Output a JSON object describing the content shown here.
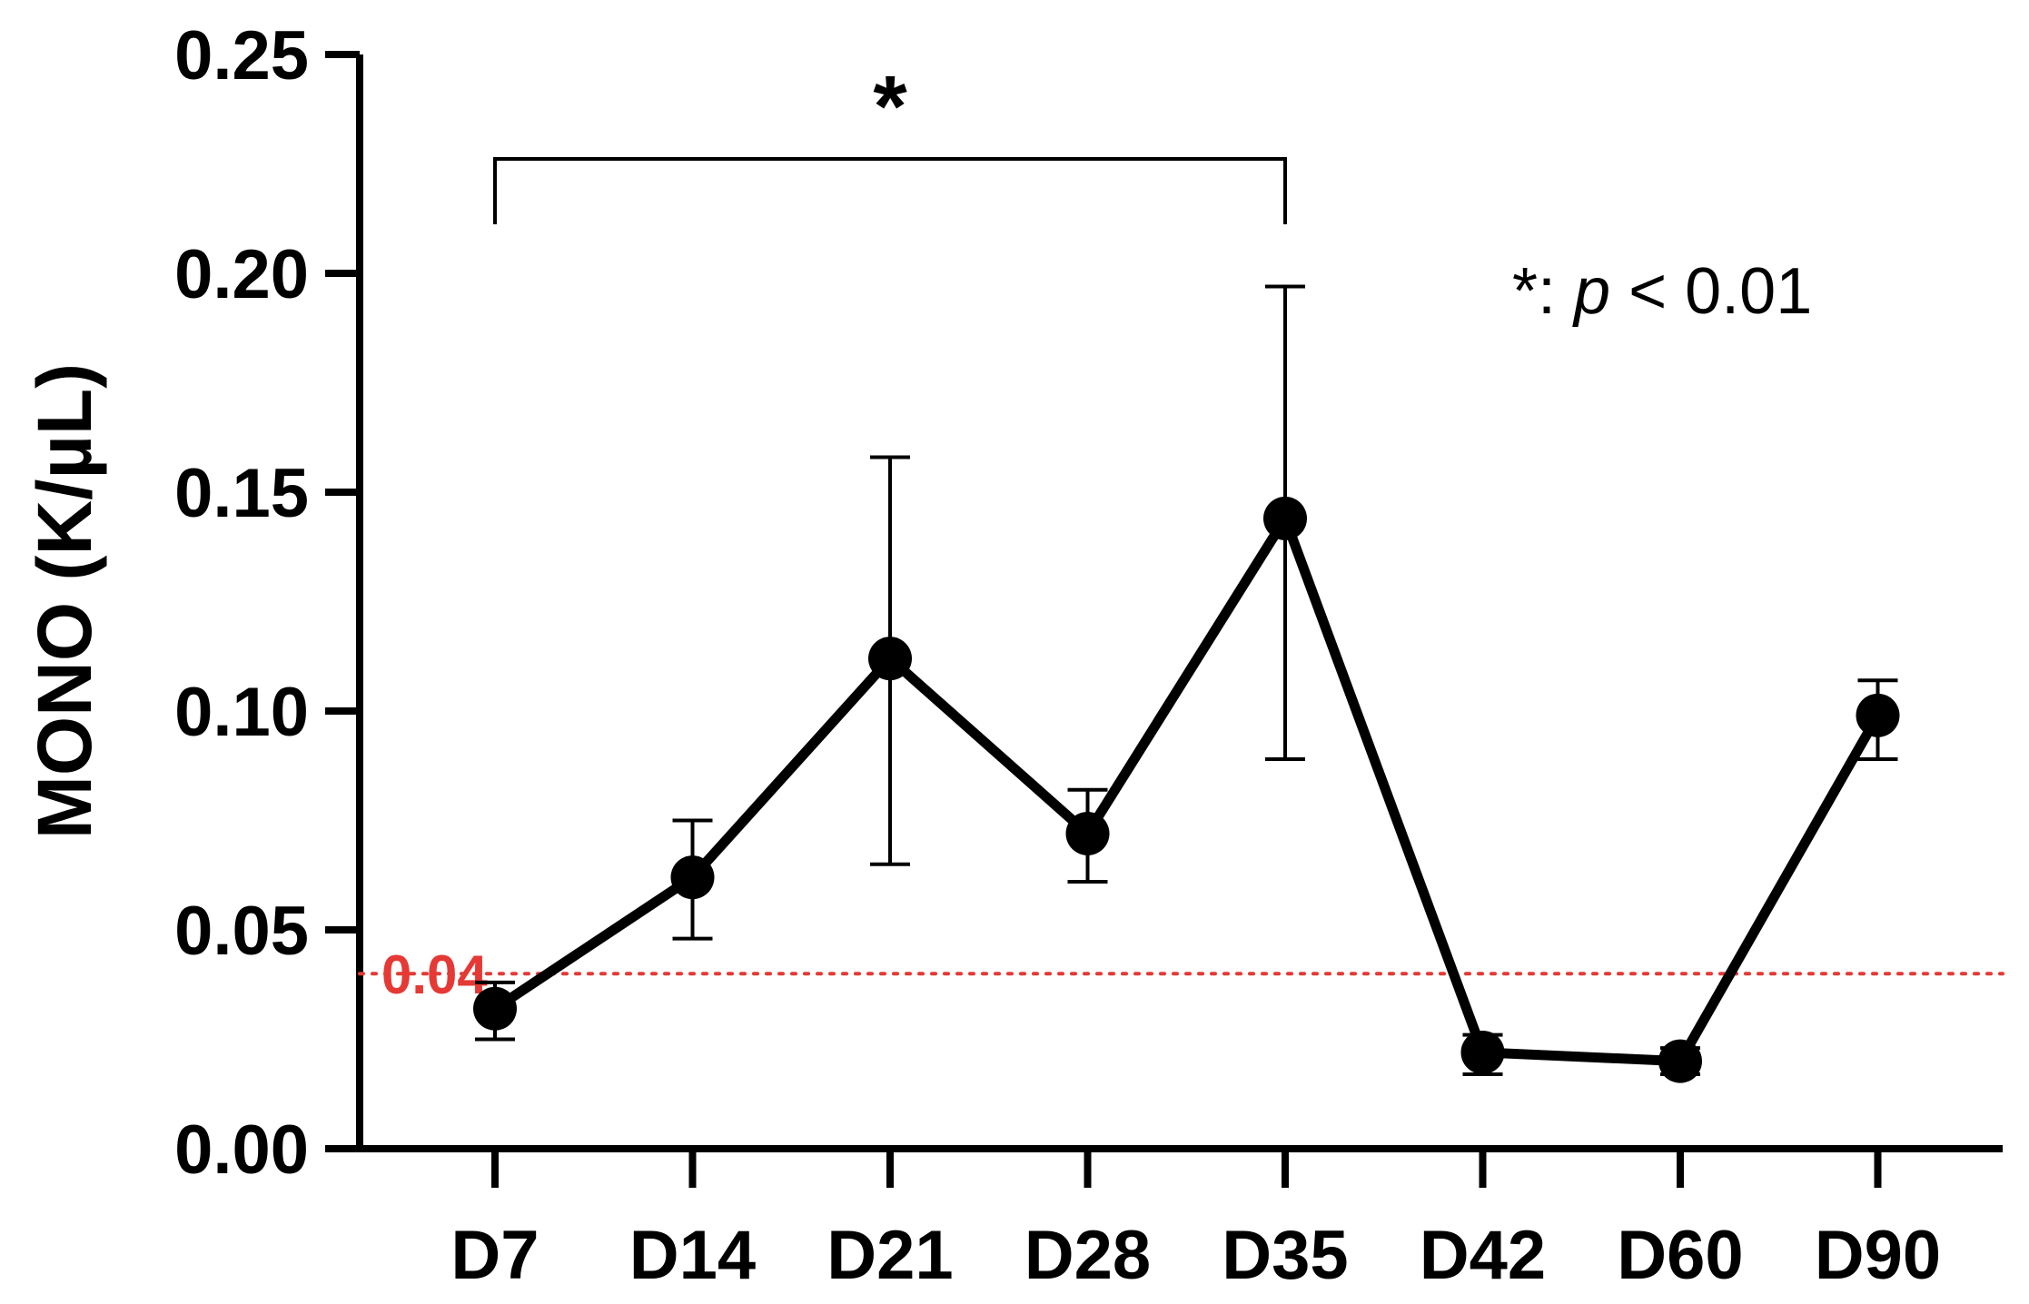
{
  "chart_data": {
    "type": "line",
    "title": "",
    "xlabel": "",
    "ylabel": "MONO (K/µL)",
    "ylim": [
      0,
      0.25
    ],
    "yticks": [
      "0.00",
      "0.05",
      "0.10",
      "0.15",
      "0.20",
      "0.25"
    ],
    "categories": [
      "D7",
      "D14",
      "D21",
      "D28",
      "D35",
      "D42",
      "D60",
      "D90"
    ],
    "series": [
      {
        "values": [
          0.032,
          0.062,
          0.112,
          0.072,
          0.144,
          0.022,
          0.02,
          0.099
        ],
        "error_upper": [
          0.038,
          0.075,
          0.158,
          0.082,
          0.197,
          0.026,
          0.023,
          0.107
        ],
        "error_lower": [
          0.025,
          0.048,
          0.065,
          0.061,
          0.089,
          0.017,
          0.017,
          0.089
        ],
        "color": "#000000"
      }
    ],
    "reference_line": {
      "value": 0.04,
      "label": "0.04",
      "color": "#e53935",
      "style": "dotted"
    },
    "significance": {
      "from": "D7",
      "to": "D35",
      "marker": "*"
    },
    "annotation": {
      "prefix": "*: ",
      "italic": "p",
      "suffix": " < 0.01"
    },
    "grid": false,
    "legend": "none"
  }
}
